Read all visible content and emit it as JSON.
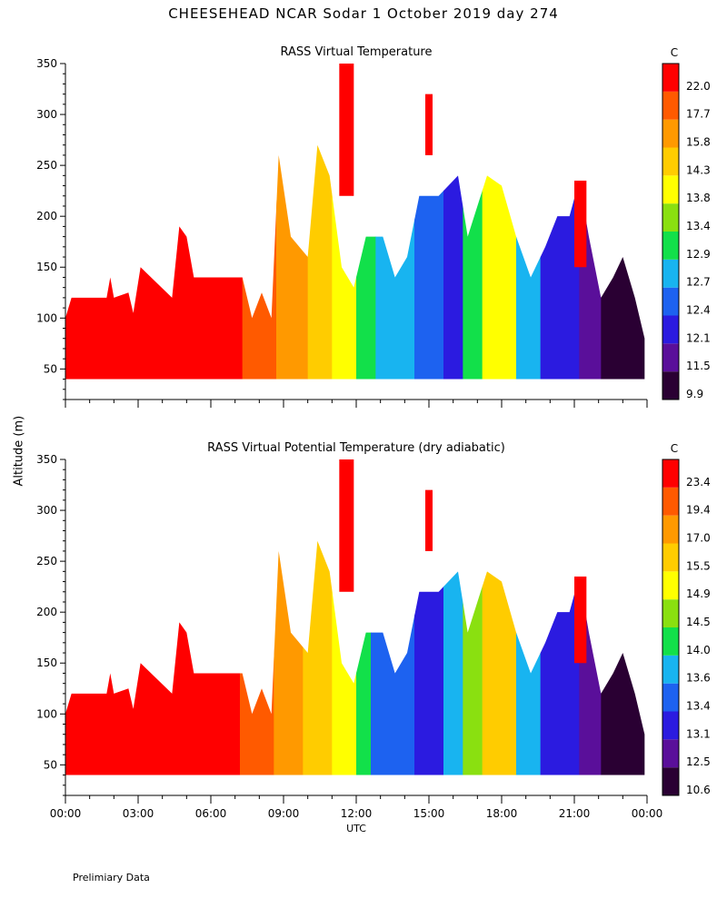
{
  "title": "CHEESEHEAD   NCAR Sodar    1 October 2019   day 274",
  "ylabel": "Altitude (m)",
  "xlabel": "UTC",
  "footnote": "Prelimiary Data",
  "colors": {
    "scale": [
      "#2a0033",
      "#5a0f9a",
      "#2b1be0",
      "#1d62f0",
      "#18b4f0",
      "#12e04a",
      "#8ae010",
      "#ffff00",
      "#ffcc00",
      "#ff9900",
      "#ff5a00",
      "#ff0000"
    ]
  },
  "chart_data": [
    {
      "type": "heatmap",
      "title": "RASS Virtual Temperature",
      "ylabel": "Altitude (m)",
      "xlabel": "UTC",
      "x_ticks": [
        "00:00",
        "03:00",
        "06:00",
        "09:00",
        "12:00",
        "15:00",
        "18:00",
        "21:00",
        "00:00"
      ],
      "xlim_hours": [
        0,
        24
      ],
      "y_ticks": [
        50,
        100,
        150,
        200,
        250,
        300,
        350
      ],
      "ylim": [
        20,
        350
      ],
      "colorbar_unit": "C",
      "colorbar_labels": [
        "9.9",
        "11.5",
        "12.1",
        "12.4",
        "12.7",
        "12.9",
        "13.4",
        "13.8",
        "14.3",
        "15.8",
        "17.7",
        "22.0"
      ],
      "ceiling_profile": {
        "hours": [
          0,
          0.25,
          1.7,
          1.85,
          2,
          2.6,
          2.8,
          3.1,
          4.4,
          4.7,
          5.0,
          5.3,
          7.3,
          7.7,
          8.1,
          8.5,
          8.8,
          9.3,
          10.0,
          10.4,
          10.9,
          11.4,
          11.9,
          12.4,
          13.1,
          13.6,
          14.1,
          14.6,
          15.4,
          16.2,
          16.6,
          17.4,
          18.0,
          18.6,
          19.2,
          19.8,
          20.3,
          20.8,
          21.2,
          21.6,
          22.1,
          22.6,
          23.0,
          23.5,
          23.9
        ],
        "top_m": [
          100,
          120,
          120,
          140,
          120,
          125,
          105,
          150,
          120,
          190,
          180,
          140,
          140,
          100,
          125,
          100,
          260,
          180,
          160,
          270,
          240,
          150,
          130,
          180,
          180,
          140,
          160,
          220,
          220,
          240,
          180,
          240,
          230,
          180,
          140,
          170,
          200,
          200,
          235,
          180,
          120,
          140,
          160,
          120,
          80
        ]
      },
      "data_bottom_m": 40,
      "zones": [
        {
          "from_h": 0,
          "to_h": 7.3,
          "value": 22.0
        },
        {
          "from_h": 7.3,
          "to_h": 8.7,
          "value": 17.7
        },
        {
          "from_h": 8.7,
          "to_h": 10.0,
          "value": 15.8
        },
        {
          "from_h": 10.0,
          "to_h": 11.0,
          "value": 14.3
        },
        {
          "from_h": 11.0,
          "to_h": 12.0,
          "value": 13.8
        },
        {
          "from_h": 12.0,
          "to_h": 12.8,
          "value": 12.9
        },
        {
          "from_h": 12.8,
          "to_h": 14.4,
          "value": 12.7
        },
        {
          "from_h": 14.4,
          "to_h": 15.6,
          "value": 12.4
        },
        {
          "from_h": 15.6,
          "to_h": 16.4,
          "value": 12.1
        },
        {
          "from_h": 16.4,
          "to_h": 17.2,
          "value": 12.9
        },
        {
          "from_h": 17.2,
          "to_h": 18.6,
          "value": 13.8
        },
        {
          "from_h": 18.6,
          "to_h": 19.6,
          "value": 12.7
        },
        {
          "from_h": 19.6,
          "to_h": 21.2,
          "value": 12.1
        },
        {
          "from_h": 21.2,
          "to_h": 22.1,
          "value": 11.5
        },
        {
          "from_h": 22.1,
          "to_h": 24,
          "value": 9.9
        }
      ],
      "isolated_patches": [
        {
          "from_h": 11.3,
          "to_h": 11.9,
          "from_m": 220,
          "to_m": 350,
          "value": 22.0
        },
        {
          "from_h": 14.85,
          "to_h": 15.15,
          "from_m": 260,
          "to_m": 320,
          "value": 22.0
        },
        {
          "from_h": 21.0,
          "to_h": 21.5,
          "from_m": 150,
          "to_m": 235,
          "value": 22.0
        }
      ]
    },
    {
      "type": "heatmap",
      "title": "RASS Virtual Potential Temperature (dry adiabatic)",
      "ylabel": "Altitude (m)",
      "xlabel": "UTC",
      "x_ticks": [
        "00:00",
        "03:00",
        "06:00",
        "09:00",
        "12:00",
        "15:00",
        "18:00",
        "21:00",
        "00:00"
      ],
      "xlim_hours": [
        0,
        24
      ],
      "y_ticks": [
        50,
        100,
        150,
        200,
        250,
        300,
        350
      ],
      "ylim": [
        20,
        350
      ],
      "colorbar_unit": "C",
      "colorbar_labels": [
        "10.6",
        "12.5",
        "13.1",
        "13.4",
        "13.6",
        "14.0",
        "14.5",
        "14.9",
        "15.5",
        "17.0",
        "19.4",
        "23.4"
      ],
      "ceiling_profile": {
        "hours": [
          0,
          0.25,
          1.7,
          1.85,
          2,
          2.6,
          2.8,
          3.1,
          4.4,
          4.7,
          5.0,
          5.3,
          7.3,
          7.7,
          8.1,
          8.5,
          8.8,
          9.3,
          10.0,
          10.4,
          10.9,
          11.4,
          11.9,
          12.4,
          13.1,
          13.6,
          14.1,
          14.6,
          15.4,
          16.2,
          16.6,
          17.4,
          18.0,
          18.6,
          19.2,
          19.8,
          20.3,
          20.8,
          21.2,
          21.6,
          22.1,
          22.6,
          23.0,
          23.5,
          23.9
        ],
        "top_m": [
          100,
          120,
          120,
          140,
          120,
          125,
          105,
          150,
          120,
          190,
          180,
          140,
          140,
          100,
          125,
          100,
          260,
          180,
          160,
          270,
          240,
          150,
          130,
          180,
          180,
          140,
          160,
          220,
          220,
          240,
          180,
          240,
          230,
          180,
          140,
          170,
          200,
          200,
          235,
          180,
          120,
          140,
          160,
          120,
          80
        ]
      },
      "data_bottom_m": 40,
      "zones": [
        {
          "from_h": 0,
          "to_h": 7.2,
          "value": 23.4
        },
        {
          "from_h": 7.2,
          "to_h": 8.6,
          "value": 19.4
        },
        {
          "from_h": 8.6,
          "to_h": 9.8,
          "value": 17.0
        },
        {
          "from_h": 9.8,
          "to_h": 11.0,
          "value": 15.5
        },
        {
          "from_h": 11.0,
          "to_h": 12.0,
          "value": 14.9
        },
        {
          "from_h": 12.0,
          "to_h": 12.6,
          "value": 14.0
        },
        {
          "from_h": 12.6,
          "to_h": 14.4,
          "value": 13.4
        },
        {
          "from_h": 14.4,
          "to_h": 15.6,
          "value": 13.1
        },
        {
          "from_h": 15.6,
          "to_h": 16.4,
          "value": 13.6
        },
        {
          "from_h": 16.4,
          "to_h": 17.2,
          "value": 14.5
        },
        {
          "from_h": 17.2,
          "to_h": 18.6,
          "value": 15.5
        },
        {
          "from_h": 18.6,
          "to_h": 19.6,
          "value": 13.6
        },
        {
          "from_h": 19.6,
          "to_h": 21.2,
          "value": 13.1
        },
        {
          "from_h": 21.2,
          "to_h": 22.1,
          "value": 12.5
        },
        {
          "from_h": 22.1,
          "to_h": 24,
          "value": 10.6
        }
      ],
      "isolated_patches": [
        {
          "from_h": 11.3,
          "to_h": 11.9,
          "from_m": 220,
          "to_m": 350,
          "value": 23.4
        },
        {
          "from_h": 14.85,
          "to_h": 15.15,
          "from_m": 260,
          "to_m": 320,
          "value": 23.4
        },
        {
          "from_h": 21.0,
          "to_h": 21.5,
          "from_m": 150,
          "to_m": 235,
          "value": 23.4
        }
      ]
    }
  ]
}
